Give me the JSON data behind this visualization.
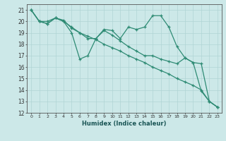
{
  "line1": {
    "x": [
      0,
      1,
      2,
      3,
      4,
      5,
      6,
      7,
      8,
      9,
      10,
      11,
      12,
      13,
      14,
      15,
      16,
      17,
      18,
      19,
      20,
      21,
      22,
      23
    ],
    "y": [
      21,
      20,
      20,
      20.3,
      20,
      19,
      16.7,
      17,
      18.5,
      19.3,
      19.2,
      18.5,
      19.5,
      19.3,
      19.5,
      20.5,
      20.5,
      19.5,
      17.8,
      16.8,
      16.4,
      16.3,
      13.0,
      12.5
    ]
  },
  "line2": {
    "x": [
      0,
      1,
      2,
      3,
      4,
      5,
      6,
      7,
      8,
      9,
      10,
      11,
      12,
      13,
      14,
      15,
      16,
      17,
      18,
      19,
      20,
      21,
      22,
      23
    ],
    "y": [
      21,
      20,
      19.8,
      20.3,
      20,
      19.5,
      19.0,
      18.5,
      18.5,
      19.2,
      18.8,
      18.3,
      17.8,
      17.4,
      17.0,
      17.0,
      16.7,
      16.5,
      16.3,
      16.8,
      16.4,
      13.9,
      13.0,
      12.5
    ]
  },
  "line3": {
    "x": [
      0,
      1,
      2,
      3,
      4,
      5,
      6,
      7,
      8,
      9,
      10,
      11,
      12,
      13,
      14,
      15,
      16,
      17,
      18,
      19,
      20,
      21,
      22,
      23
    ],
    "y": [
      21,
      20,
      19.8,
      20.3,
      20.1,
      19.4,
      19.0,
      18.7,
      18.4,
      18.0,
      17.7,
      17.4,
      17.0,
      16.7,
      16.4,
      16.0,
      15.7,
      15.4,
      15.0,
      14.7,
      14.4,
      14.0,
      13.0,
      12.5
    ]
  },
  "color": "#2e8b74",
  "bg_color": "#cce8e8",
  "grid_major_color": "#b0d4d4",
  "grid_minor_color": "#c0dede",
  "xlabel": "Humidex (Indice chaleur)",
  "ylim": [
    12,
    21.5
  ],
  "xlim": [
    -0.5,
    23.5
  ],
  "yticks": [
    12,
    13,
    14,
    15,
    16,
    17,
    18,
    19,
    20,
    21
  ],
  "xticks": [
    0,
    1,
    2,
    3,
    4,
    5,
    6,
    7,
    8,
    9,
    10,
    11,
    12,
    13,
    14,
    15,
    16,
    17,
    18,
    19,
    20,
    21,
    22,
    23
  ]
}
